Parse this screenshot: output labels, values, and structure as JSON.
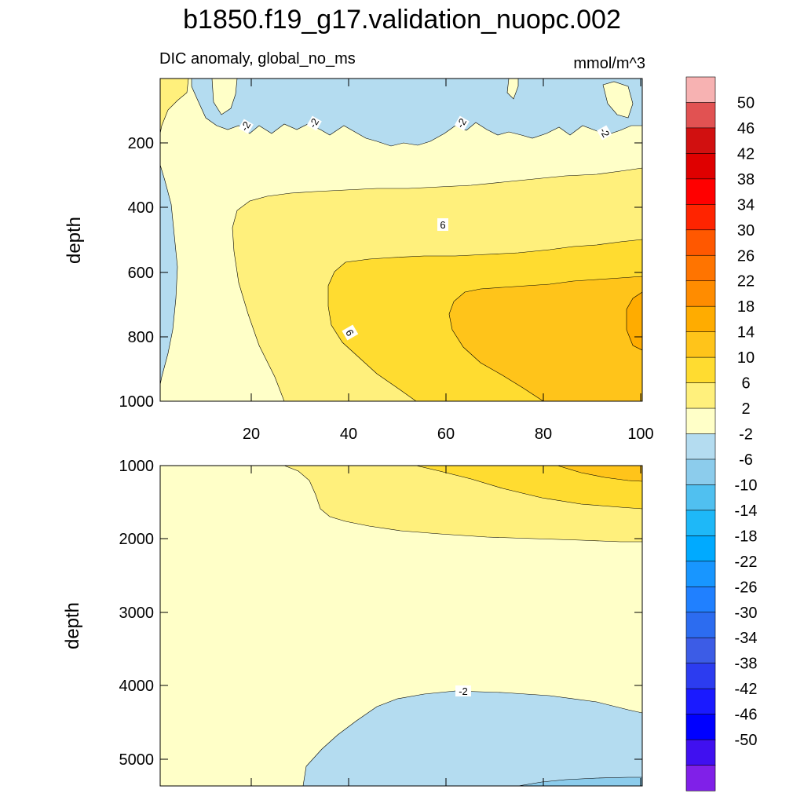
{
  "figure": {
    "title": "b1850.f19_g17.validation_nuopc.002",
    "subtitle_left": "DIC anomaly, global_no_ms",
    "subtitle_right": "mmol/m^3"
  },
  "chart_data": [
    {
      "type": "contour",
      "panel": "upper",
      "ylabel": "depth",
      "xlabel": "",
      "xlim": [
        1,
        101
      ],
      "ylim": [
        1000,
        5
      ],
      "x_ticks": [
        "20",
        "40",
        "60",
        "80",
        "100"
      ],
      "y_ticks": [
        "200",
        "400",
        "600",
        "800",
        "1000"
      ],
      "contour_labels": [
        "-2",
        "-2",
        "-2",
        "-2",
        "6",
        "6"
      ],
      "regions": [
        {
          "range": "-6 to -2",
          "description": "surface band 5–200 m at most x; thin strip near x<5 at 250–850 m"
        },
        {
          "range": "-2 to 2",
          "description": "background 200–300 m and western region x<25"
        },
        {
          "range": "2 to 6",
          "description": "mid region 300–1000 m, x 20–100"
        },
        {
          "range": "6 to 10",
          "description": "core 500–1000 m, x 40–100"
        },
        {
          "range": "10 to 14",
          "description": "core 600–1000 m, x 60–100"
        },
        {
          "range": "14 to 18",
          "description": "small patch near x 95–101, 680–800 m"
        }
      ]
    },
    {
      "type": "contour",
      "panel": "lower",
      "ylabel": "depth",
      "xlabel": "",
      "xlim": [
        1,
        101
      ],
      "ylim": [
        5375,
        1000
      ],
      "x_ticks": [],
      "y_ticks": [
        "1000",
        "2000",
        "3000",
        "4000",
        "5000"
      ],
      "contour_labels": [
        "-2"
      ],
      "regions": [
        {
          "range": "-2 to 2",
          "description": "background most of panel"
        },
        {
          "range": "2 to 6",
          "description": "upper east 1000–2000 m, x 35–101"
        },
        {
          "range": "6 to 10",
          "description": "upper east 1000–1500 m, x 55–101"
        },
        {
          "range": "10 to 14",
          "description": "corner 1000–1200 m, x 82–101"
        },
        {
          "range": "-6 to -2",
          "description": "deep region below ~4050 m, x 30–101"
        },
        {
          "range": "-10 to -6",
          "description": "bottom sliver near 5200–5375 m, x 75–101"
        }
      ]
    }
  ],
  "colorbar": {
    "labels": [
      "50",
      "46",
      "42",
      "38",
      "34",
      "30",
      "26",
      "22",
      "18",
      "14",
      "10",
      "6",
      "2",
      "-2",
      "-6",
      "-10",
      "-14",
      "-18",
      "-22",
      "-26",
      "-30",
      "-34",
      "-38",
      "-42",
      "-46",
      "-50"
    ],
    "colors": [
      "#F7B2B2",
      "#E15252",
      "#D11010",
      "#DF0000",
      "#FF0000",
      "#FF2400",
      "#FF5800",
      "#FF7400",
      "#FF8C00",
      "#FFAC00",
      "#FFC41A",
      "#FFDC30",
      "#FFF07C",
      "#FFFFC8",
      "#B4DCF0",
      "#8CCCEC",
      "#50C0F0",
      "#1EB8F8",
      "#00AAFF",
      "#1896FF",
      "#2080FF",
      "#2C6CF0",
      "#3C5CE6",
      "#2C3CF0",
      "#1A1AFF",
      "#0000FF",
      "#4010F0",
      "#8020E8"
    ]
  }
}
